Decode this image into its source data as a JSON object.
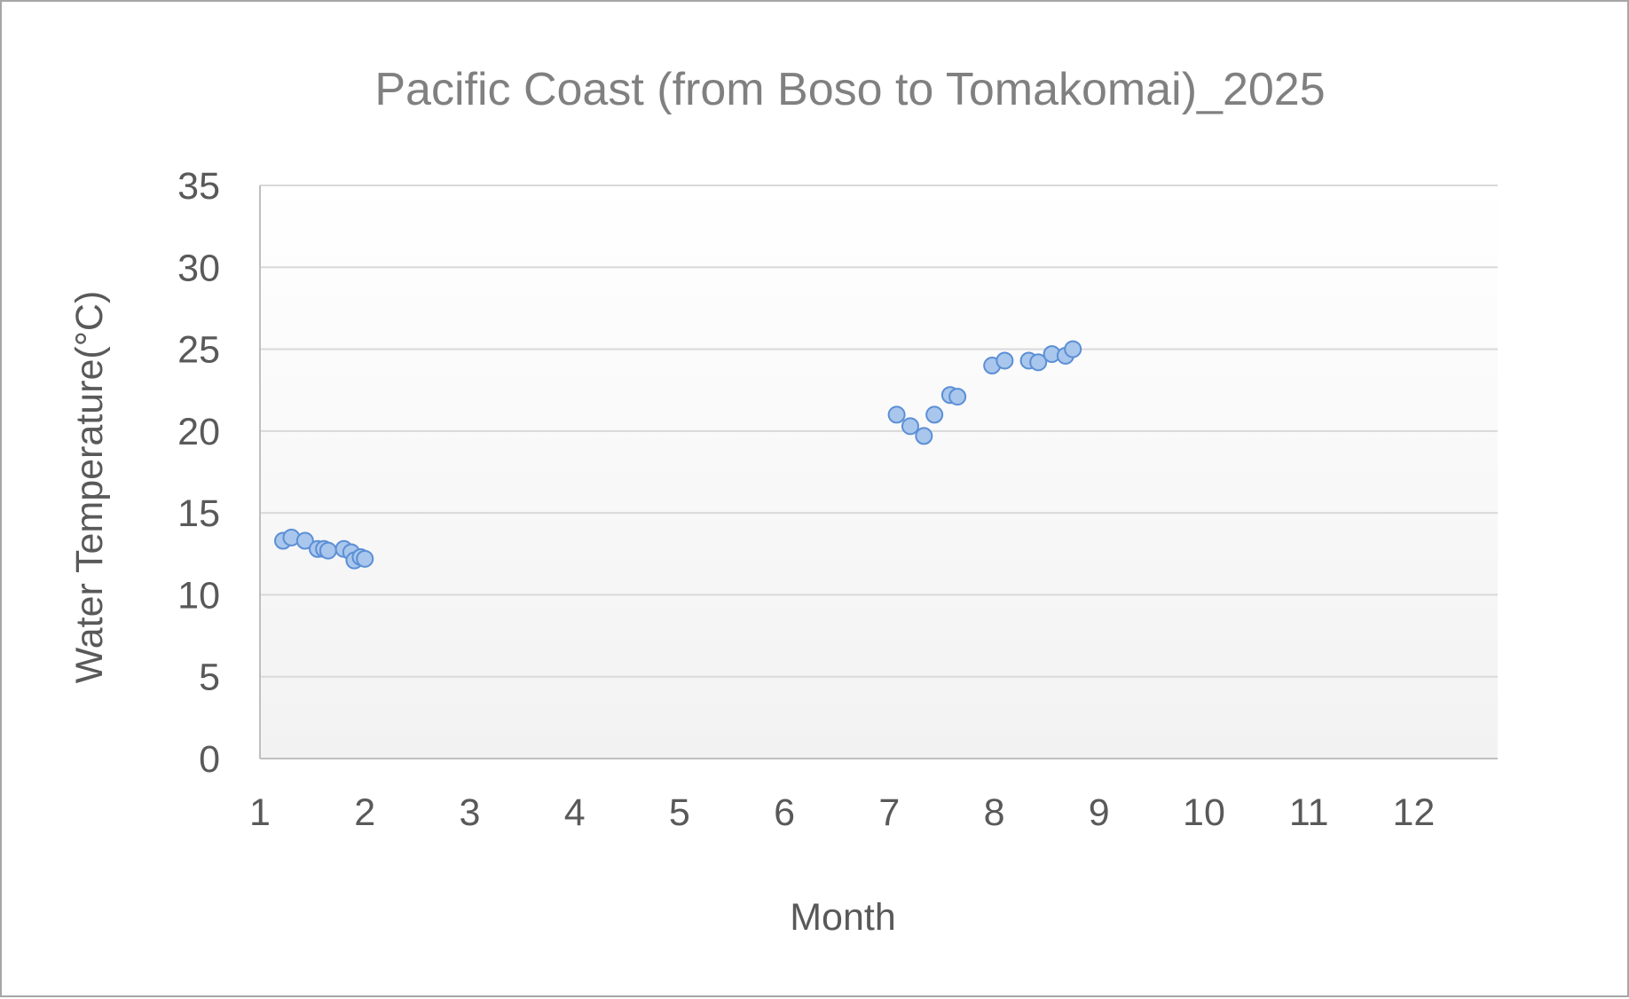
{
  "chart_data": {
    "type": "scatter",
    "title": "Pacific Coast (from Boso to Tomakomai)_2025",
    "xlabel": "Month",
    "ylabel": "Water Temperature(°C)",
    "xlim": [
      1,
      12.8
    ],
    "ylim": [
      0,
      35
    ],
    "xticks": [
      1,
      2,
      3,
      4,
      5,
      6,
      7,
      8,
      9,
      10,
      11,
      12
    ],
    "yticks": [
      0,
      5,
      10,
      15,
      20,
      25,
      30,
      35
    ],
    "grid": true,
    "legend": "none",
    "marker_fill": "#a9c6ec",
    "marker_edge": "#5b8fd6",
    "series": [
      {
        "points": [
          {
            "x": 1.22,
            "y": 13.3
          },
          {
            "x": 1.3,
            "y": 13.5
          },
          {
            "x": 1.43,
            "y": 13.3
          },
          {
            "x": 1.55,
            "y": 12.8
          },
          {
            "x": 1.61,
            "y": 12.8
          },
          {
            "x": 1.65,
            "y": 12.7
          },
          {
            "x": 1.8,
            "y": 12.8
          },
          {
            "x": 1.87,
            "y": 12.6
          },
          {
            "x": 1.9,
            "y": 12.1
          },
          {
            "x": 1.96,
            "y": 12.3
          },
          {
            "x": 2.0,
            "y": 12.2
          },
          {
            "x": 7.07,
            "y": 21.0
          },
          {
            "x": 7.2,
            "y": 20.3
          },
          {
            "x": 7.33,
            "y": 19.7
          },
          {
            "x": 7.43,
            "y": 21.0
          },
          {
            "x": 7.58,
            "y": 22.2
          },
          {
            "x": 7.65,
            "y": 22.1
          },
          {
            "x": 7.98,
            "y": 24.0
          },
          {
            "x": 8.1,
            "y": 24.3
          },
          {
            "x": 8.33,
            "y": 24.3
          },
          {
            "x": 8.42,
            "y": 24.2
          },
          {
            "x": 8.55,
            "y": 24.7
          },
          {
            "x": 8.68,
            "y": 24.6
          },
          {
            "x": 8.75,
            "y": 25.0
          }
        ]
      }
    ]
  }
}
